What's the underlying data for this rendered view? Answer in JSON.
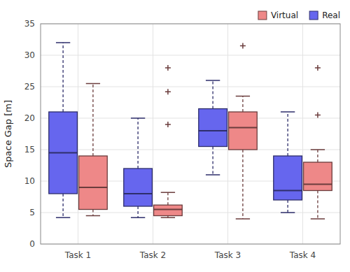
{
  "chart_data": {
    "type": "box",
    "categories": [
      "Task 1",
      "Task 2",
      "Task 3",
      "Task 4"
    ],
    "y_label": "Space Gap [m]",
    "ylim": [
      0,
      35
    ],
    "yticks": [
      0,
      5,
      10,
      15,
      20,
      25,
      30,
      35
    ],
    "grid": true,
    "legend": "upper right",
    "series": [
      {
        "name": "Real",
        "color": "#6666EE",
        "whislo": [
          4.2,
          4.2,
          11.0,
          5.0
        ],
        "q1": [
          8.0,
          6.0,
          15.5,
          7.0
        ],
        "med": [
          14.5,
          8.0,
          18.0,
          8.5
        ],
        "q3": [
          21.0,
          12.0,
          21.5,
          14.0
        ],
        "whishi": [
          32.0,
          20.0,
          26.0,
          21.0
        ],
        "fliers": [
          [],
          [],
          [],
          []
        ]
      },
      {
        "name": "Virtual",
        "color": "#EE8888",
        "whislo": [
          4.5,
          4.2,
          4.0,
          4.0
        ],
        "q1": [
          5.5,
          4.5,
          15.0,
          8.5
        ],
        "med": [
          9.0,
          5.5,
          18.5,
          9.5
        ],
        "q3": [
          14.0,
          6.2,
          21.0,
          13.0
        ],
        "whishi": [
          25.5,
          8.2,
          23.5,
          15.0
        ],
        "fliers": [
          [],
          [
            28.0,
            24.2,
            19.0
          ],
          [
            31.5
          ],
          [
            20.5,
            28.0
          ]
        ]
      }
    ]
  }
}
